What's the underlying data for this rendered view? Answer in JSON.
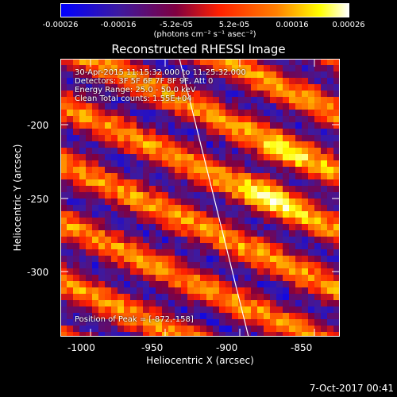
{
  "colorbar": {
    "tick_labels": [
      "-0.00026",
      "-0.00016",
      "-5.2e-05",
      "5.2e-05",
      "0.00016",
      "0.00026"
    ],
    "units": "(photons cm⁻² s⁻¹ asec⁻²)"
  },
  "title": "Reconstructed RHESSI Image",
  "annotations": {
    "line1": "30-Apr-2015 11:15:32.000 to 11:25:32.000",
    "line2": "Detectors: 3F 5F 6F 7F 8F 9F, Att 0",
    "line3": "Energy Range: 25.0 - 50.0 keV",
    "line4": "Clean     Total counts: 1.55E+04",
    "peak": "Position of Peak = [-872,-158]"
  },
  "chart_data": {
    "type": "heatmap",
    "title": "Reconstructed RHESSI Image",
    "xlabel": "Heliocentric X (arcsec)",
    "ylabel": "Heliocentric Y (arcsec)",
    "xlim": [
      -1015,
      -828
    ],
    "ylim": [
      -345,
      -160
    ],
    "x_ticks": [
      "-1000",
      "-950",
      "-900",
      "-850"
    ],
    "y_ticks": [
      "-200",
      "-250",
      "-300"
    ],
    "colorbar_range": [
      -0.00026,
      0.00026
    ],
    "colormap": [
      "#0000ff",
      "#3d1aa0",
      "#800040",
      "#ff2000",
      "#ff8000",
      "#ffff00",
      "#ffffff"
    ],
    "peak_position": [
      -872,
      -158
    ]
  },
  "footer": {
    "date": "7-Oct-2017 00:41"
  }
}
